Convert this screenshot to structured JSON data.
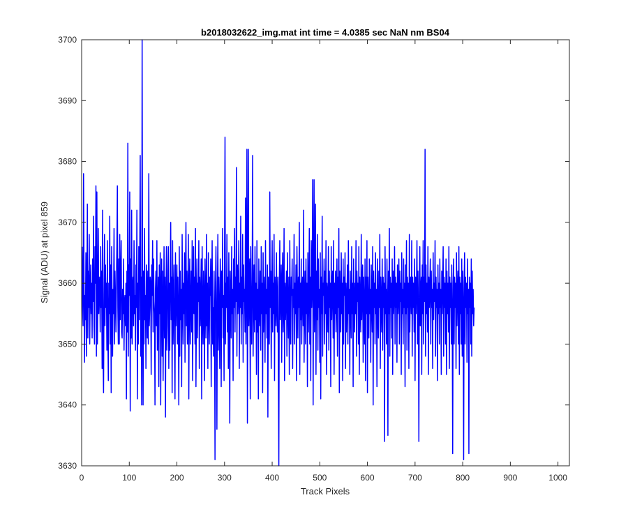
{
  "chart_data": {
    "type": "line",
    "title": "b2018032622_img.mat int time = 4.0385 sec  NaN nm BS04",
    "xlabel": "Track Pixels",
    "ylabel": "Signal (ADU) at pixel 859",
    "xlim": [
      0,
      1024
    ],
    "ylim": [
      3630,
      3700
    ],
    "xticks": [
      0,
      100,
      200,
      300,
      400,
      500,
      600,
      700,
      800,
      900,
      1000
    ],
    "yticks": [
      3630,
      3640,
      3650,
      3660,
      3670,
      3680,
      3690,
      3700
    ],
    "grid": false,
    "legend": "none",
    "series": [
      {
        "color": "#0000ff",
        "x_start": 1,
        "x_step": 1,
        "values": [
          3666,
          3656,
          3653,
          3678,
          3661,
          3647,
          3658,
          3654,
          3665,
          3648,
          3658,
          3673,
          3651,
          3662,
          3656,
          3668,
          3650,
          3659,
          3663,
          3655,
          3660,
          3651,
          3664,
          3657,
          3671,
          3653,
          3650,
          3666,
          3660,
          3676,
          3648,
          3675,
          3650,
          3657,
          3669,
          3655,
          3659,
          3661,
          3652,
          3666,
          3656,
          3662,
          3646,
          3672,
          3648,
          3642,
          3658,
          3668,
          3653,
          3663,
          3656,
          3660,
          3649,
          3667,
          3652,
          3644,
          3660,
          3655,
          3671,
          3650,
          3663,
          3642,
          3666,
          3657,
          3648,
          3659,
          3655,
          3669,
          3650,
          3662,
          3658,
          3652,
          3660,
          3666,
          3676,
          3656,
          3650,
          3664,
          3650,
          3668,
          3654,
          3661,
          3667,
          3652,
          3651,
          3659,
          3655,
          3664,
          3649,
          3657,
          3658,
          3653,
          3660,
          3641,
          3662,
          3652,
          3683,
          3648,
          3663,
          3658,
          3675,
          3639,
          3664,
          3651,
          3672,
          3650,
          3659,
          3661,
          3653,
          3667,
          3655,
          3658,
          3649,
          3663,
          3656,
          3672,
          3641,
          3660,
          3650,
          3666,
          3654,
          3665,
          3681,
          3648,
          3661,
          3640,
          3700,
          3657,
          3640,
          3662,
          3650,
          3669,
          3654,
          3658,
          3646,
          3663,
          3660,
          3651,
          3662,
          3650,
          3678,
          3653,
          3656,
          3661,
          3660,
          3645,
          3663,
          3658,
          3667,
          3652,
          3664,
          3657,
          3655,
          3640,
          3659,
          3662,
          3653,
          3667,
          3649,
          3656,
          3661,
          3643,
          3663,
          3655,
          3665,
          3640,
          3659,
          3664,
          3648,
          3662,
          3644,
          3656,
          3666,
          3651,
          3661,
          3638,
          3657,
          3666,
          3649,
          3653,
          3662,
          3666,
          3646,
          3660,
          3649,
          3662,
          3670,
          3654,
          3661,
          3642,
          3667,
          3650,
          3657,
          3663,
          3651,
          3641,
          3665,
          3653,
          3657,
          3663,
          3650,
          3661,
          3655,
          3640,
          3666,
          3648,
          3662,
          3654,
          3659,
          3643,
          3668,
          3657,
          3650,
          3660,
          3655,
          3665,
          3647,
          3661,
          3670,
          3653,
          3662,
          3650,
          3656,
          3668,
          3641,
          3659,
          3664,
          3650,
          3657,
          3662,
          3652,
          3667,
          3644,
          3658,
          3666,
          3655,
          3661,
          3650,
          3669,
          3643,
          3656,
          3664,
          3651,
          3660,
          3657,
          3667,
          3646,
          3661,
          3653,
          3658,
          3664,
          3641,
          3666,
          3655,
          3650,
          3662,
          3658,
          3644,
          3664,
          3657,
          3651,
          3668,
          3653,
          3660,
          3646,
          3665,
          3655,
          3650,
          3661,
          3658,
          3664,
          3643,
          3659,
          3667,
          3650,
          3656,
          3648,
          3662,
          3655,
          3631,
          3660,
          3666,
          3654,
          3636,
          3658,
          3668,
          3649,
          3661,
          3655,
          3646,
          3664,
          3660,
          3643,
          3662,
          3656,
          3669,
          3651,
          3658,
          3644,
          3664,
          3684,
          3650,
          3660,
          3656,
          3668,
          3652,
          3661,
          3646,
          3665,
          3655,
          3637,
          3662,
          3658,
          3651,
          3666,
          3655,
          3659,
          3644,
          3664,
          3656,
          3669,
          3652,
          3661,
          3657,
          3679,
          3648,
          3663,
          3655,
          3659,
          3667,
          3646,
          3660,
          3656,
          3671,
          3650,
          3661,
          3655,
          3668,
          3647,
          3663,
          3657,
          3659,
          3652,
          3674,
          3650,
          3661,
          3682,
          3637,
          3662,
          3682,
          3653,
          3659,
          3664,
          3641,
          3666,
          3656,
          3650,
          3661,
          3681,
          3648,
          3657,
          3663,
          3652,
          3666,
          3654,
          3660,
          3645,
          3667,
          3652,
          3659,
          3641,
          3664,
          3656,
          3653,
          3662,
          3649,
          3666,
          3655,
          3660,
          3642,
          3665,
          3652,
          3658,
          3661,
          3647,
          3667,
          3655,
          3659,
          3651,
          3663,
          3638,
          3661,
          3655,
          3650,
          3675,
          3656,
          3662,
          3646,
          3658,
          3667,
          3652,
          3660,
          3655,
          3668,
          3644,
          3661,
          3658,
          3653,
          3665,
          3656,
          3652,
          3661,
          3646,
          3630,
          3660,
          3667,
          3654,
          3658,
          3663,
          3647,
          3660,
          3665,
          3652,
          3656,
          3669,
          3644,
          3660,
          3654,
          3658,
          3662,
          3648,
          3665,
          3656,
          3651,
          3661,
          3645,
          3667,
          3655,
          3650,
          3661,
          3658,
          3664,
          3646,
          3659,
          3656,
          3668,
          3650,
          3660,
          3655,
          3663,
          3644,
          3666,
          3658,
          3651,
          3661,
          3656,
          3670,
          3645,
          3660,
          3654,
          3664,
          3650,
          3659,
          3661,
          3653,
          3672,
          3647,
          3656,
          3662,
          3650,
          3664,
          3655,
          3660,
          3643,
          3665,
          3652,
          3658,
          3669,
          3650,
          3661,
          3644,
          3667,
          3656,
          3660,
          3677,
          3640,
          3662,
          3677,
          3652,
          3658,
          3673,
          3645,
          3662,
          3654,
          3668,
          3649,
          3664,
          3656,
          3659,
          3647,
          3665,
          3641,
          3661,
          3655,
          3671,
          3648,
          3660,
          3658,
          3664,
          3650,
          3662,
          3655,
          3667,
          3645,
          3660,
          3658,
          3652,
          3666,
          3649,
          3662,
          3656,
          3660,
          3643,
          3666,
          3654,
          3659,
          3662,
          3651,
          3667,
          3645,
          3660,
          3655,
          3662,
          3652,
          3658,
          3664,
          3648,
          3661,
          3656,
          3669,
          3642,
          3662,
          3657,
          3652,
          3665,
          3655,
          3660,
          3644,
          3664,
          3650,
          3661,
          3658,
          3665,
          3646,
          3660,
          3652,
          3657,
          3663,
          3650,
          3667,
          3655,
          3659,
          3645,
          3662,
          3656,
          3651,
          3666,
          3655,
          3660,
          3643,
          3664,
          3657,
          3652,
          3660,
          3655,
          3667,
          3648,
          3662,
          3657,
          3660,
          3650,
          3666,
          3645,
          3661,
          3657,
          3652,
          3668,
          3654,
          3659,
          3663,
          3647,
          3661,
          3656,
          3650,
          3664,
          3644,
          3661,
          3655,
          3667,
          3642,
          3661,
          3656,
          3651,
          3664,
          3655,
          3659,
          3647,
          3663,
          3657,
          3652,
          3666,
          3640,
          3662,
          3656,
          3660,
          3650,
          3665,
          3655,
          3659,
          3643,
          3664,
          3656,
          3651,
          3662,
          3656,
          3668,
          3646,
          3661,
          3657,
          3652,
          3664,
          3649,
          3661,
          3656,
          3660,
          3634,
          3666,
          3655,
          3659,
          3650,
          3664,
          3656,
          3635,
          3662,
          3655,
          3669,
          3648,
          3661,
          3656,
          3660,
          3651,
          3664,
          3645,
          3662,
          3655,
          3658,
          3666,
          3650,
          3661,
          3656,
          3660,
          3647,
          3663,
          3655,
          3658,
          3664,
          3650,
          3662,
          3657,
          3660,
          3645,
          3665,
          3655,
          3659,
          3650,
          3664,
          3656,
          3660,
          3643,
          3663,
          3655,
          3667,
          3649,
          3661,
          3656,
          3660,
          3646,
          3668,
          3652,
          3659,
          3661,
          3655,
          3667,
          3648,
          3661,
          3656,
          3660,
          3652,
          3664,
          3644,
          3661,
          3655,
          3659,
          3667,
          3650,
          3662,
          3656,
          3634,
          3660,
          3666,
          3653,
          3659,
          3661,
          3645,
          3663,
          3655,
          3667,
          3650,
          3661,
          3657,
          3682,
          3648,
          3663,
          3655,
          3660,
          3652,
          3666,
          3645,
          3661,
          3656,
          3659,
          3664,
          3650,
          3662,
          3656,
          3659,
          3646,
          3665,
          3654,
          3660,
          3657,
          3667,
          3648,
          3661,
          3656,
          3659,
          3644,
          3663,
          3655,
          3660,
          3650,
          3664,
          3656,
          3659,
          3645,
          3662,
          3655,
          3660,
          3666,
          3648,
          3661,
          3656,
          3660,
          3650,
          3664,
          3645,
          3662,
          3655,
          3660,
          3652,
          3666,
          3646,
          3661,
          3656,
          3660,
          3650,
          3663,
          3655,
          3632,
          3660,
          3664,
          3650,
          3661,
          3656,
          3660,
          3646,
          3665,
          3653,
          3659,
          3662,
          3650,
          3666,
          3645,
          3661,
          3655,
          3660,
          3650,
          3664,
          3648,
          3662,
          3656,
          3631,
          3660,
          3665,
          3650,
          3661,
          3656,
          3660,
          3647,
          3664,
          3655,
          3659,
          3632,
          3661,
          3656,
          3660,
          3650,
          3664,
          3648,
          3662,
          3655,
          3659,
          3653,
          3656
        ]
      }
    ]
  }
}
